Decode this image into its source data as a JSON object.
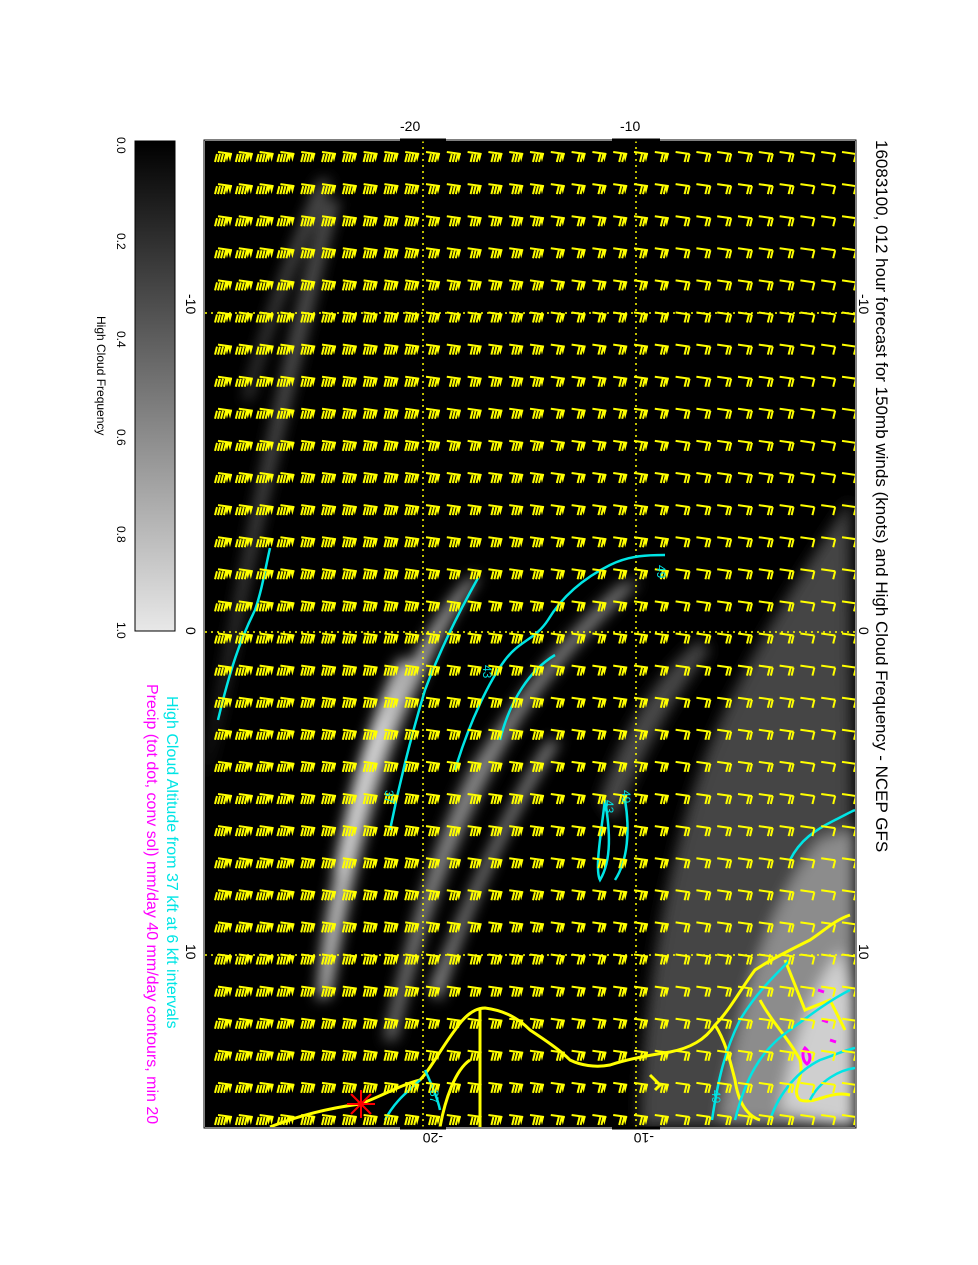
{
  "title": "16083100, 012 hour forecast for 150mb winds (knots) and High Cloud Frequency - NCEP GFS",
  "legend": {
    "line1": "High Cloud Altitude from 37 kft at 6 kft intervals",
    "line2": "Precip (tot dot, conv sol) mm/day 40 mm/day contours, min 20"
  },
  "colorbar": {
    "label": "High Cloud Frequency",
    "ticks": [
      "0.0",
      "0.2",
      "0.4",
      "0.6",
      "0.8",
      "1.0"
    ],
    "min": 0.0,
    "max": 1.0
  },
  "axes": {
    "top_ticks": [
      "-20",
      "-10"
    ],
    "bottom_ticks": [
      "-20",
      "-10"
    ],
    "left_ticks": [
      "-10",
      "0",
      "10"
    ],
    "right_ticks": [
      "-10",
      "0",
      "10"
    ]
  },
  "contour_labels": [
    "49",
    "43",
    "49",
    "37",
    "43",
    "37",
    "49"
  ],
  "colors": {
    "wind_barbs": "#ffff00",
    "cloud_altitude_contours": "#00e5e5",
    "precip_contours": "#ff00ff",
    "coastline": "#ffff00",
    "marker": "#ff0000",
    "background": "#000000"
  },
  "icons": {
    "location_marker": "red-star-icon"
  }
}
